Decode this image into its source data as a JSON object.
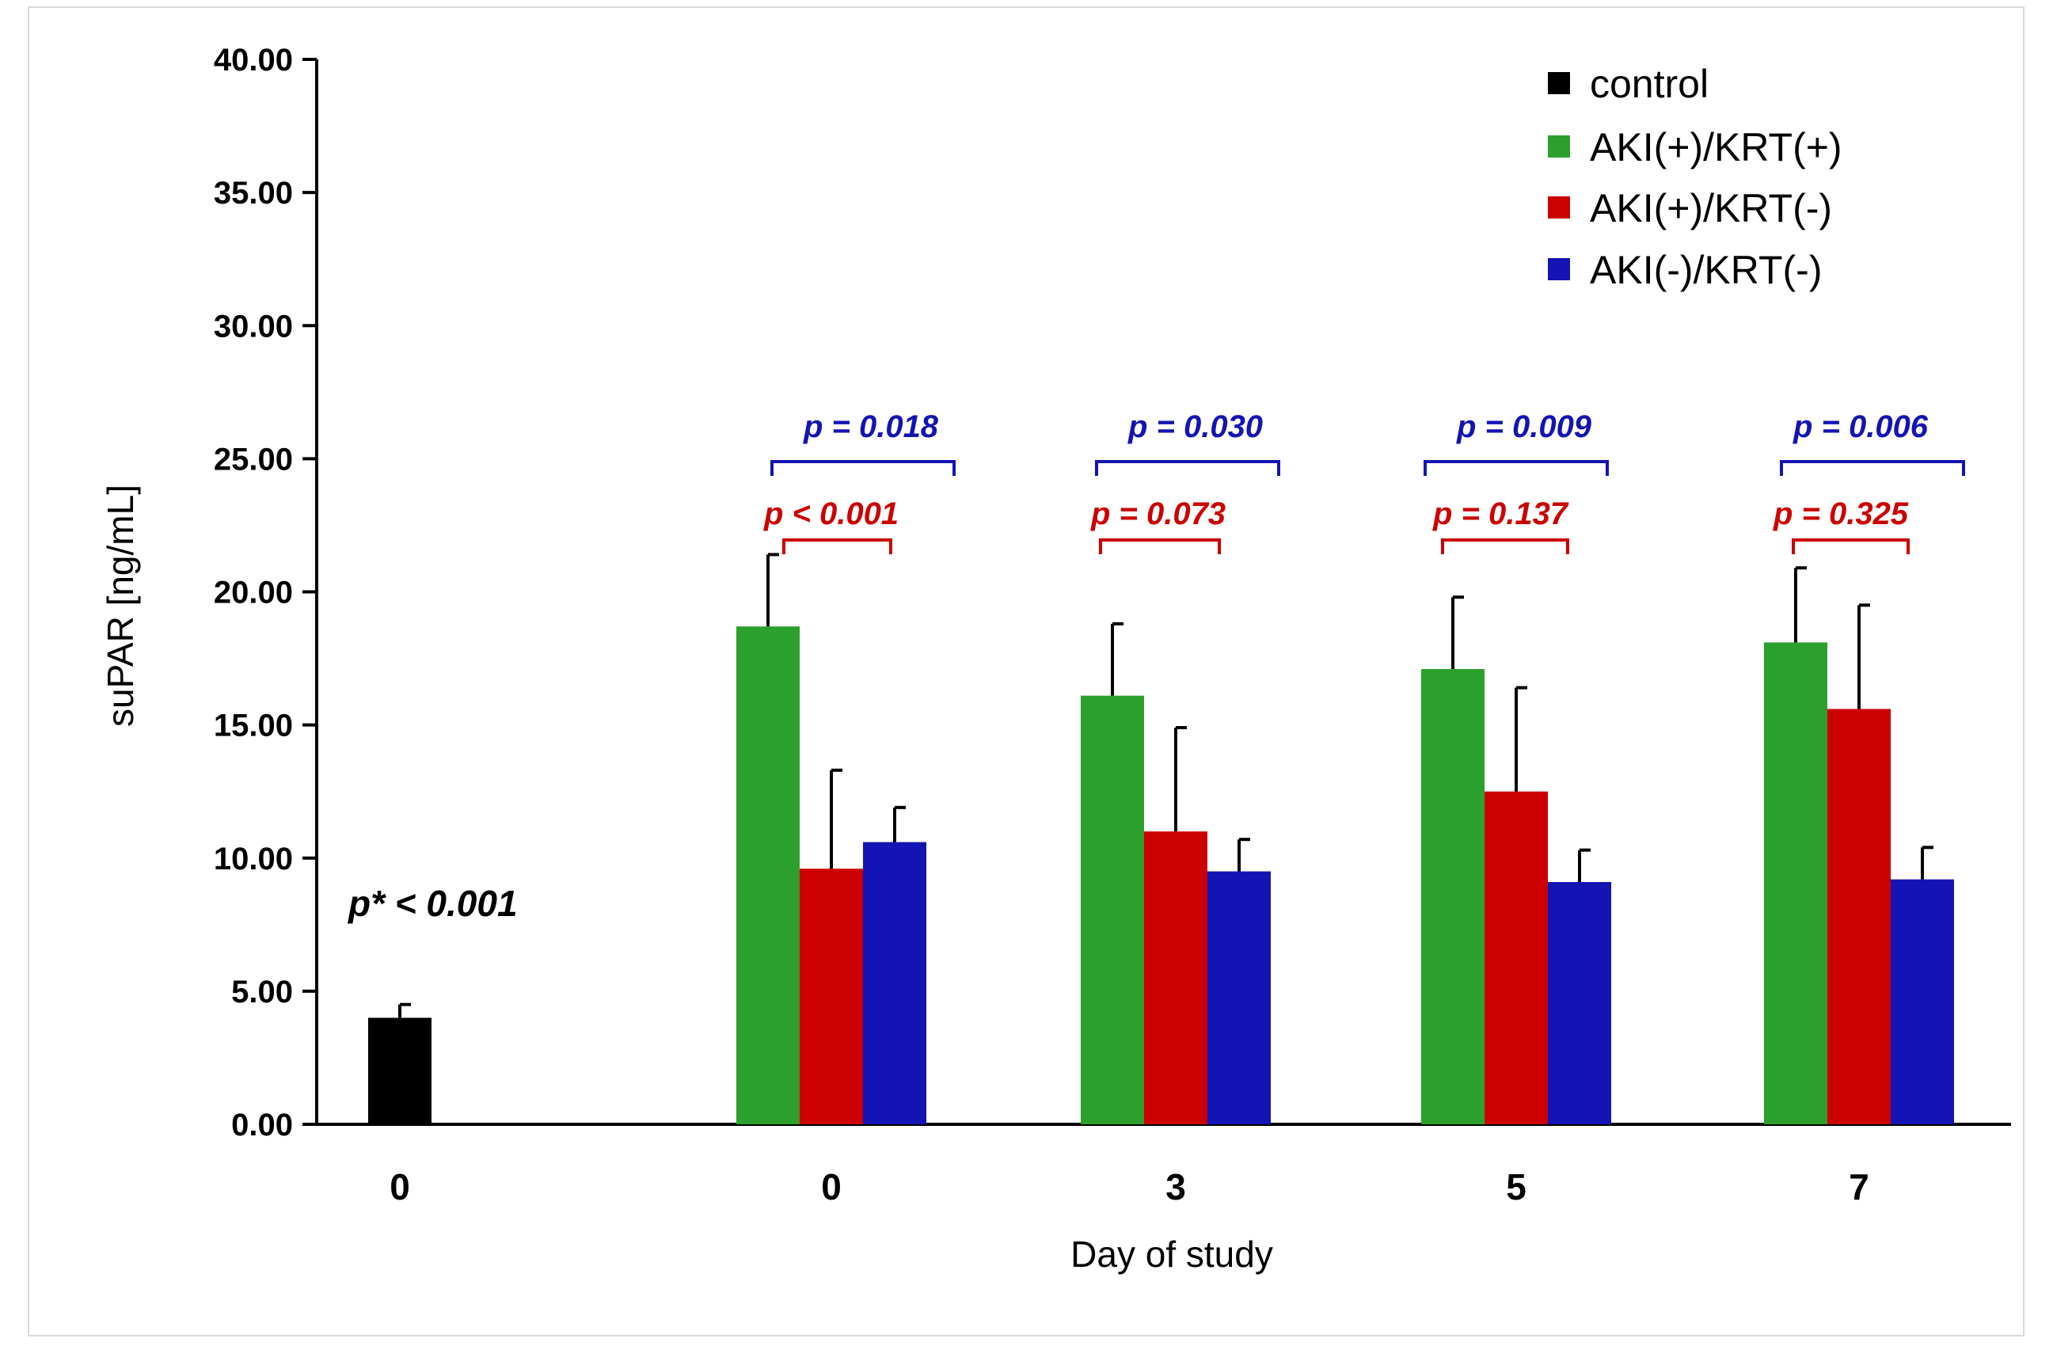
{
  "chart_data": {
    "type": "bar",
    "ylabel": "suPAR [ng/mL]",
    "xlabel": "Day of study",
    "ylim": [
      0,
      40
    ],
    "yticks": [
      "0.00",
      "5.00",
      "10.00",
      "15.00",
      "20.00",
      "25.00",
      "30.00",
      "35.00",
      "40.00"
    ],
    "ytick_values": [
      0,
      5,
      10,
      15,
      20,
      25,
      30,
      35,
      40
    ],
    "legend_position": "top-right",
    "categories": [
      "0",
      "0",
      "3",
      "5",
      "7"
    ],
    "series": [
      {
        "name": "control",
        "color": "#000000",
        "values": [
          4.0,
          null,
          null,
          null,
          null
        ],
        "errors": [
          0.5,
          null,
          null,
          null,
          null
        ]
      },
      {
        "name": "AKI(+)/KRT(+)",
        "color": "#2ca02c",
        "values": [
          null,
          18.7,
          16.1,
          17.1,
          18.1
        ],
        "errors": [
          null,
          2.7,
          2.7,
          2.7,
          2.8
        ]
      },
      {
        "name": "AKI(+)/KRT(-)",
        "color": "#cc0000",
        "values": [
          null,
          9.6,
          11.0,
          12.5,
          15.6
        ],
        "errors": [
          null,
          3.7,
          3.9,
          3.9,
          3.9
        ]
      },
      {
        "name": "AKI(-)/KRT(-)",
        "color": "#1414b4",
        "values": [
          null,
          10.6,
          9.5,
          9.1,
          9.2
        ],
        "errors": [
          null,
          1.3,
          1.2,
          1.2,
          1.2
        ]
      }
    ],
    "annotations": {
      "control_p": "p* < 0.001",
      "blue_p": [
        "p = 0.018",
        "p = 0.030",
        "p = 0.009",
        "p = 0.006"
      ],
      "red_p": [
        "p < 0.001",
        "p = 0.073",
        "p = 0.137",
        "p = 0.325"
      ]
    }
  }
}
